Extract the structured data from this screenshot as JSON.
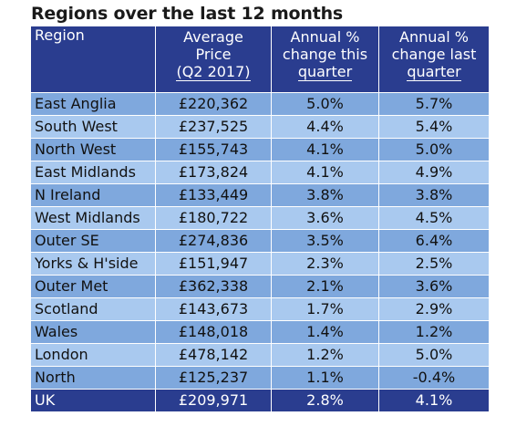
{
  "chart_data": {
    "type": "table",
    "title": "Regions over the last 12 months",
    "columns": [
      {
        "lines": [
          "Region"
        ]
      },
      {
        "lines": [
          "Average",
          "Price",
          "(Q2 2017)"
        ]
      },
      {
        "lines": [
          "Annual %",
          "change this",
          "quarter"
        ]
      },
      {
        "lines": [
          "Annual %",
          "change last",
          "quarter"
        ]
      }
    ],
    "rows": [
      {
        "region": "East Anglia",
        "price": "£220,362",
        "this_q": "5.0%",
        "last_q": "5.7%"
      },
      {
        "region": "South West",
        "price": "£237,525",
        "this_q": "4.4%",
        "last_q": "5.4%"
      },
      {
        "region": "North West",
        "price": "£155,743",
        "this_q": "4.1%",
        "last_q": "5.0%"
      },
      {
        "region": "East Midlands",
        "price": "£173,824",
        "this_q": "4.1%",
        "last_q": "4.9%"
      },
      {
        "region": "N Ireland",
        "price": "£133,449",
        "this_q": "3.8%",
        "last_q": "3.8%"
      },
      {
        "region": "West Midlands",
        "price": "£180,722",
        "this_q": "3.6%",
        "last_q": "4.5%"
      },
      {
        "region": "Outer SE",
        "price": "£274,836",
        "this_q": "3.5%",
        "last_q": "6.4%"
      },
      {
        "region": "Yorks & H'side",
        "price": "£151,947",
        "this_q": "2.3%",
        "last_q": "2.5%"
      },
      {
        "region": "Outer Met",
        "price": "£362,338",
        "this_q": "2.1%",
        "last_q": "3.6%"
      },
      {
        "region": "Scotland",
        "price": "£143,673",
        "this_q": "1.7%",
        "last_q": "2.9%"
      },
      {
        "region": "Wales",
        "price": "£148,018",
        "this_q": "1.4%",
        "last_q": "1.2%"
      },
      {
        "region": "London",
        "price": "£478,142",
        "this_q": "1.2%",
        "last_q": "5.0%"
      },
      {
        "region": "North",
        "price": "£125,237",
        "this_q": "1.1%",
        "last_q": "-0.4%"
      }
    ],
    "total": {
      "region": "UK",
      "price": "£209,971",
      "this_q": "2.8%",
      "last_q": "4.1%"
    }
  },
  "colors": {
    "header": "#2a3d8f",
    "row_dark": "#7fa8dd",
    "row_light": "#a9c9ef"
  }
}
